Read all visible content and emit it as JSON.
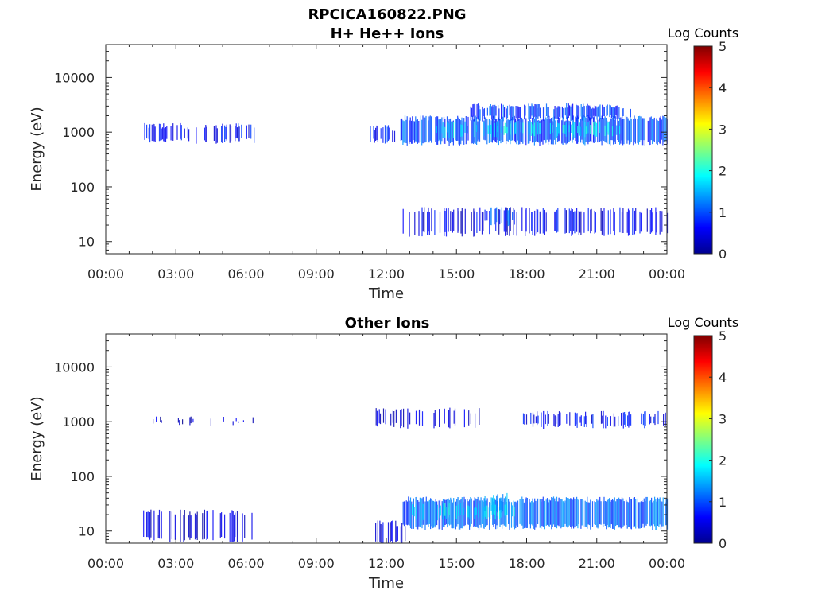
{
  "figure": {
    "title_line1": "RPCICA160822.PNG",
    "x_tick_labels": [
      "00:00",
      "03:00",
      "06:00",
      "09:00",
      "12:00",
      "15:00",
      "18:00",
      "21:00",
      "00:00"
    ],
    "y_tick_labels": [
      "10",
      "100",
      "1000",
      "10000"
    ],
    "xlabel": "Time",
    "ylabel": "Energy (eV)",
    "colorbar_label": "Log Counts",
    "colorbar_ticks": [
      "0",
      "1",
      "2",
      "3",
      "4",
      "5"
    ],
    "colormap": [
      "#00008f",
      "#0000ff",
      "#0080ff",
      "#00ffff",
      "#80ff80",
      "#ffff00",
      "#ff8000",
      "#ff0000",
      "#800000"
    ]
  },
  "chart_data": [
    {
      "type": "heatmap",
      "title": "H+ He++ Ions",
      "xlabel": "Time",
      "ylabel": "Energy (eV)",
      "xlim": [
        0,
        24
      ],
      "ylim": [
        6,
        40000
      ],
      "yscale": "log",
      "clim": [
        0,
        5
      ],
      "colorbar_label": "Log Counts",
      "regions": [
        {
          "t_start": 1.6,
          "t_end": 6.4,
          "e_low": 700,
          "e_high": 1300,
          "log_counts": 0.6,
          "density": 0.45
        },
        {
          "t_start": 11.3,
          "t_end": 12.8,
          "e_low": 700,
          "e_high": 1200,
          "log_counts": 0.7,
          "density": 0.5
        },
        {
          "t_start": 12.6,
          "t_end": 24.0,
          "e_low": 650,
          "e_high": 1800,
          "log_counts": 1.0,
          "density": 0.85
        },
        {
          "t_start": 14.0,
          "t_end": 22.0,
          "e_low": 900,
          "e_high": 1400,
          "log_counts": 1.8,
          "density": 0.4
        },
        {
          "t_start": 15.5,
          "t_end": 22.5,
          "e_low": 1800,
          "e_high": 3000,
          "log_counts": 0.9,
          "density": 0.7
        },
        {
          "t_start": 12.7,
          "t_end": 24.0,
          "e_low": 14,
          "e_high": 38,
          "log_counts": 0.5,
          "density": 0.45
        },
        {
          "t_start": 16.2,
          "t_end": 17.5,
          "e_low": 22,
          "e_high": 38,
          "log_counts": 1.0,
          "density": 0.6
        }
      ]
    },
    {
      "type": "heatmap",
      "title": "Other Ions",
      "xlabel": "Time",
      "ylabel": "Energy (eV)",
      "xlim": [
        0,
        24
      ],
      "ylim": [
        6,
        40000
      ],
      "yscale": "log",
      "clim": [
        0,
        5
      ],
      "colorbar_label": "Log Counts",
      "regions": [
        {
          "t_start": 1.6,
          "t_end": 6.4,
          "e_low": 7,
          "e_high": 22,
          "log_counts": 0.4,
          "density": 0.35
        },
        {
          "t_start": 11.3,
          "t_end": 12.8,
          "e_low": 6,
          "e_high": 14,
          "log_counts": 0.4,
          "density": 0.4
        },
        {
          "t_start": 12.7,
          "t_end": 24.0,
          "e_low": 12,
          "e_high": 38,
          "log_counts": 1.1,
          "density": 0.9
        },
        {
          "t_start": 13.0,
          "t_end": 17.5,
          "e_low": 18,
          "e_high": 30,
          "log_counts": 1.8,
          "density": 0.35
        },
        {
          "t_start": 16.2,
          "t_end": 17.2,
          "e_low": 22,
          "e_high": 45,
          "log_counts": 1.3,
          "density": 0.7
        },
        {
          "t_start": 1.6,
          "t_end": 6.4,
          "e_low": 950,
          "e_high": 1150,
          "log_counts": 0.3,
          "density": 0.12
        },
        {
          "t_start": 11.5,
          "t_end": 16.0,
          "e_low": 850,
          "e_high": 1600,
          "log_counts": 0.4,
          "density": 0.3
        },
        {
          "t_start": 17.8,
          "t_end": 24.0,
          "e_low": 850,
          "e_high": 1400,
          "log_counts": 0.6,
          "density": 0.45
        }
      ]
    }
  ]
}
